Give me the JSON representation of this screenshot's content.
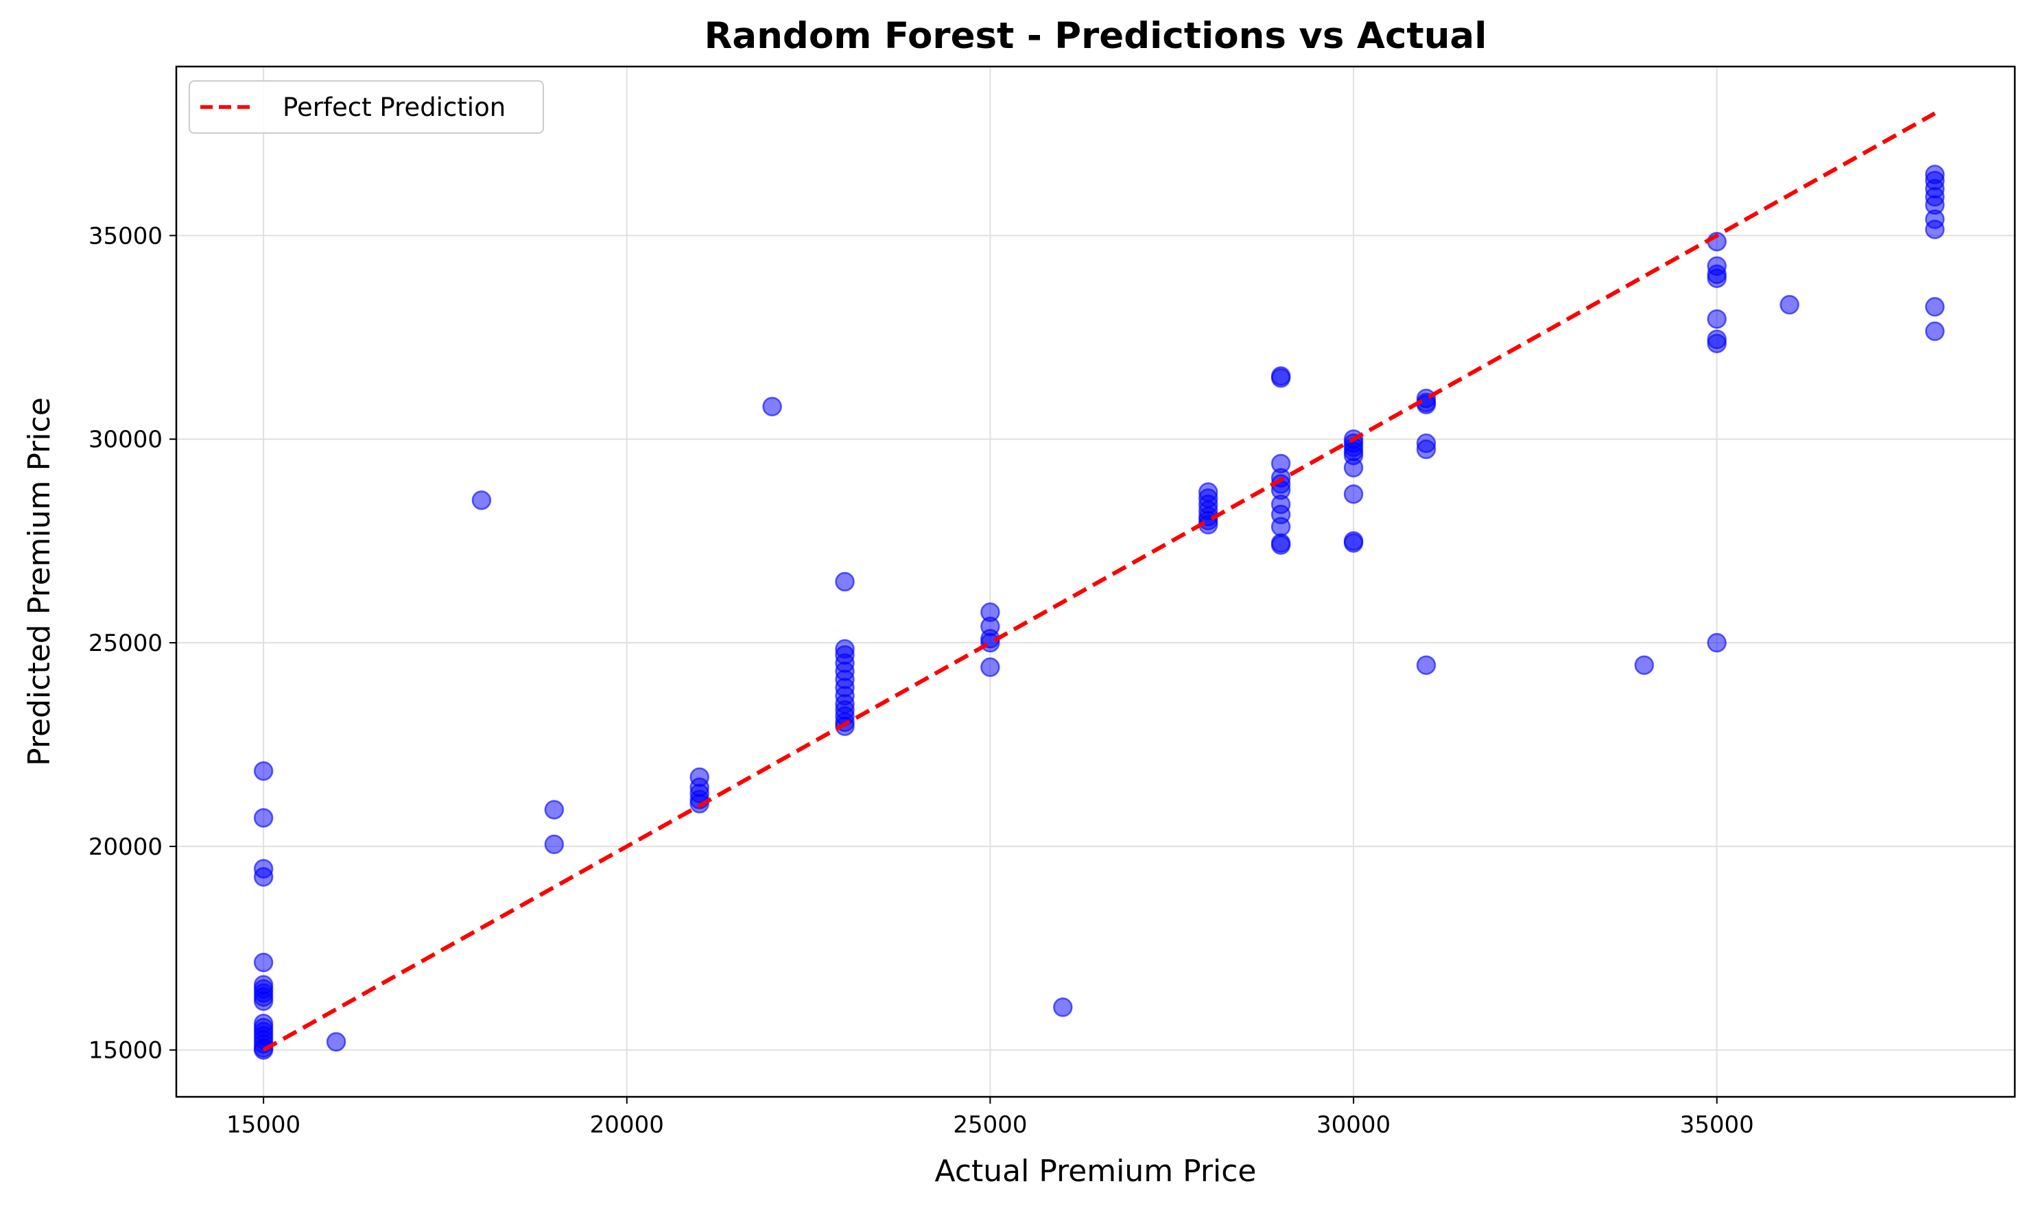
{
  "chart_data": {
    "type": "scatter",
    "title": "Random Forest - Predictions vs Actual",
    "xlabel": "Actual Premium Price",
    "ylabel": "Predicted Premium Price",
    "xlim": [
      13800,
      39100
    ],
    "ylim": [
      13850,
      39150
    ],
    "xticks": [
      15000,
      20000,
      25000,
      30000,
      35000
    ],
    "yticks": [
      15000,
      20000,
      25000,
      30000,
      35000
    ],
    "grid": true,
    "legend": {
      "position": "top-left",
      "entries": [
        "Perfect Prediction"
      ]
    },
    "colors": {
      "points": "#0000ff",
      "perfect_line": "#ff0000",
      "grid": "#e0e0e0"
    },
    "series": [
      {
        "kind": "scatter",
        "points": [
          [
            15000,
            21850
          ],
          [
            15000,
            20700
          ],
          [
            15000,
            19450
          ],
          [
            15000,
            19250
          ],
          [
            15000,
            17150
          ],
          [
            15000,
            16600
          ],
          [
            15000,
            16500
          ],
          [
            15000,
            16400
          ],
          [
            15000,
            16300
          ],
          [
            15000,
            16200
          ],
          [
            15000,
            15650
          ],
          [
            15000,
            15550
          ],
          [
            15000,
            15450
          ],
          [
            15000,
            15350
          ],
          [
            15000,
            15250
          ],
          [
            15000,
            15150
          ],
          [
            15000,
            15050
          ],
          [
            15000,
            15000
          ],
          [
            16000,
            15200
          ],
          [
            18000,
            28500
          ],
          [
            19000,
            20900
          ],
          [
            19000,
            20050
          ],
          [
            21000,
            21700
          ],
          [
            21000,
            21450
          ],
          [
            21000,
            21300
          ],
          [
            21000,
            21150
          ],
          [
            21000,
            21050
          ],
          [
            22000,
            30800
          ],
          [
            23000,
            26500
          ],
          [
            23000,
            24850
          ],
          [
            23000,
            24700
          ],
          [
            23000,
            24500
          ],
          [
            23000,
            24300
          ],
          [
            23000,
            24100
          ],
          [
            23000,
            23900
          ],
          [
            23000,
            23700
          ],
          [
            23000,
            23500
          ],
          [
            23000,
            23350
          ],
          [
            23000,
            23200
          ],
          [
            23000,
            23050
          ],
          [
            23000,
            22950
          ],
          [
            25000,
            25750
          ],
          [
            25000,
            25400
          ],
          [
            25000,
            25100
          ],
          [
            25000,
            25000
          ],
          [
            25000,
            24400
          ],
          [
            26000,
            16050
          ],
          [
            28000,
            28700
          ],
          [
            28000,
            28550
          ],
          [
            28000,
            28400
          ],
          [
            28000,
            28250
          ],
          [
            28000,
            28100
          ],
          [
            28000,
            28000
          ],
          [
            28000,
            27900
          ],
          [
            29000,
            31550
          ],
          [
            29000,
            31500
          ],
          [
            29000,
            29400
          ],
          [
            29000,
            29050
          ],
          [
            29000,
            28900
          ],
          [
            29000,
            28750
          ],
          [
            29000,
            28400
          ],
          [
            29000,
            28150
          ],
          [
            29000,
            27850
          ],
          [
            29000,
            27450
          ],
          [
            29000,
            27400
          ],
          [
            30000,
            30000
          ],
          [
            30000,
            29900
          ],
          [
            30000,
            29800
          ],
          [
            30000,
            29700
          ],
          [
            30000,
            29600
          ],
          [
            30000,
            29300
          ],
          [
            30000,
            28650
          ],
          [
            30000,
            27500
          ],
          [
            30000,
            27450
          ],
          [
            31000,
            31000
          ],
          [
            31000,
            30900
          ],
          [
            31000,
            30850
          ],
          [
            31000,
            29900
          ],
          [
            31000,
            29750
          ],
          [
            31000,
            24450
          ],
          [
            34000,
            24450
          ],
          [
            35000,
            34850
          ],
          [
            35000,
            34250
          ],
          [
            35000,
            34050
          ],
          [
            35000,
            33950
          ],
          [
            35000,
            32950
          ],
          [
            35000,
            32450
          ],
          [
            35000,
            32350
          ],
          [
            35000,
            25000
          ],
          [
            36000,
            33300
          ],
          [
            38000,
            36500
          ],
          [
            38000,
            36350
          ],
          [
            38000,
            36150
          ],
          [
            38000,
            35950
          ],
          [
            38000,
            35750
          ],
          [
            38000,
            35400
          ],
          [
            38000,
            35150
          ],
          [
            38000,
            33250
          ],
          [
            38000,
            32650
          ]
        ]
      },
      {
        "kind": "line",
        "name": "Perfect Prediction",
        "style": "dashed",
        "points": [
          [
            15000,
            15000
          ],
          [
            38000,
            38000
          ]
        ]
      }
    ]
  }
}
